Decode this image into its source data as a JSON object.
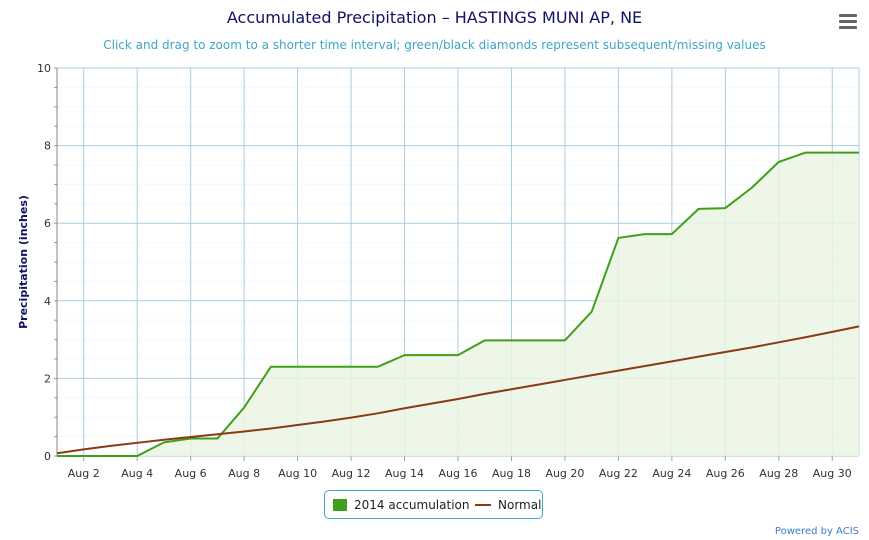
{
  "title": "Accumulated Precipitation – HASTINGS MUNI AP, NE",
  "subtitle": "Click and drag to zoom to a shorter time interval; green/black diamonds represent subsequent/missing values",
  "menu_icon": "hamburger-menu-icon",
  "credit": "Powered by ACIS",
  "colors": {
    "accumulation": "#3f9e1a",
    "accumulation_fill": "#eaf4e3",
    "normal": "#8b3a14",
    "grid": "#a9cde0",
    "title": "#111166",
    "subtitle": "#3ea6c8"
  },
  "chart_data": {
    "type": "line",
    "title": "Accumulated Precipitation – HASTINGS MUNI AP, NE",
    "ylabel": "Precipitation (inches)",
    "ylim": [
      0,
      10
    ],
    "yticks": [
      "0",
      "2",
      "4",
      "6",
      "8",
      "10"
    ],
    "xlim": [
      1,
      31
    ],
    "xtick_values": [
      2,
      4,
      6,
      8,
      10,
      12,
      14,
      16,
      18,
      20,
      22,
      24,
      26,
      28,
      30
    ],
    "xtick_labels": [
      "Aug 2",
      "Aug 4",
      "Aug 6",
      "Aug 8",
      "Aug 10",
      "Aug 12",
      "Aug 14",
      "Aug 16",
      "Aug 18",
      "Aug 20",
      "Aug 22",
      "Aug 24",
      "Aug 26",
      "Aug 28",
      "Aug 30"
    ],
    "grid": true,
    "legend_position": "bottom-center",
    "x": [
      1,
      2,
      3,
      4,
      5,
      6,
      7,
      8,
      9,
      10,
      11,
      12,
      13,
      14,
      15,
      16,
      17,
      18,
      19,
      20,
      21,
      22,
      23,
      24,
      25,
      26,
      27,
      28,
      29,
      30,
      31
    ],
    "series": [
      {
        "name": "2014 accumulation",
        "type": "area",
        "values": [
          0,
          0,
          0,
          0,
          0.35,
          0.45,
          0.45,
          1.25,
          2.3,
          2.3,
          2.3,
          2.3,
          2.3,
          2.6,
          2.6,
          2.6,
          2.98,
          2.98,
          2.98,
          2.98,
          3.72,
          5.62,
          5.72,
          5.72,
          6.37,
          6.39,
          6.92,
          7.58,
          7.82,
          7.82,
          7.82
        ]
      },
      {
        "name": "Normal",
        "type": "line",
        "values": [
          0.07,
          0.17,
          0.26,
          0.34,
          0.42,
          0.49,
          0.56,
          0.63,
          0.71,
          0.8,
          0.89,
          0.99,
          1.1,
          1.23,
          1.35,
          1.47,
          1.6,
          1.72,
          1.84,
          1.96,
          2.08,
          2.2,
          2.32,
          2.44,
          2.56,
          2.68,
          2.8,
          2.93,
          3.06,
          3.2,
          3.34
        ]
      }
    ]
  }
}
